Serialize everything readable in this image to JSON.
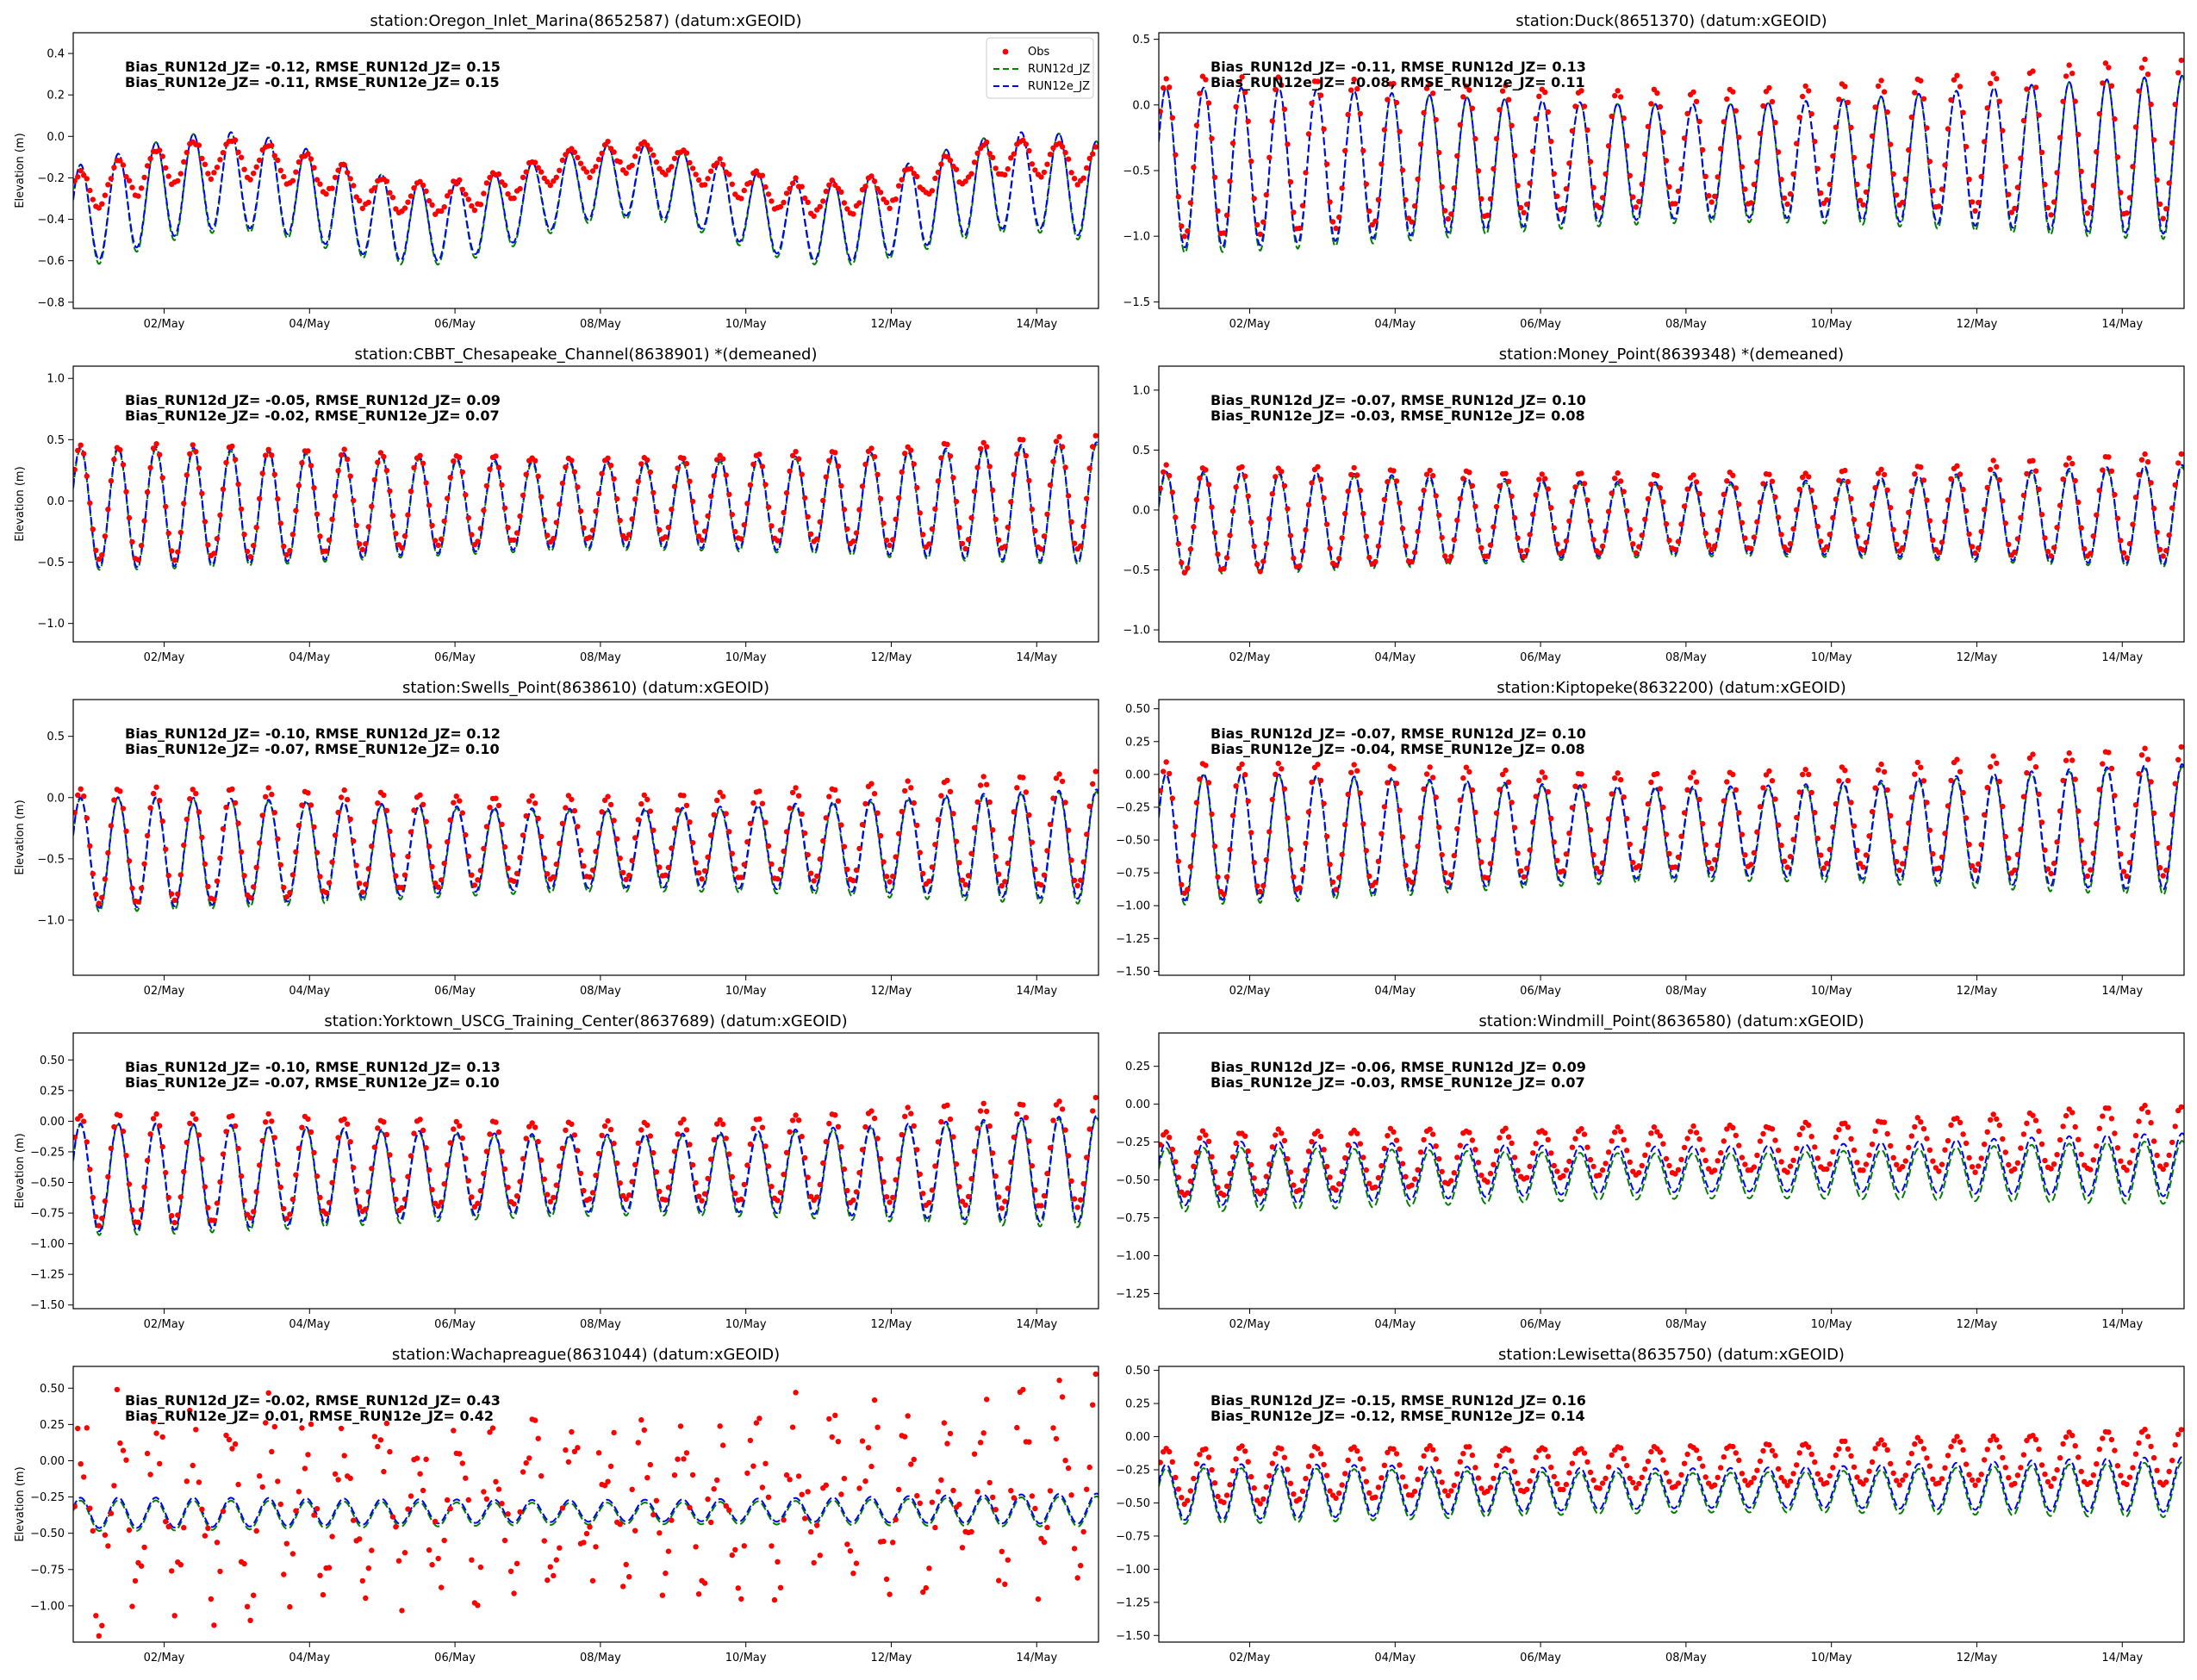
{
  "chart_data": [
    {
      "type": "line",
      "title": "station:Oregon_Inlet_Marina(8652587) (datum:xGEOID)",
      "ylabel": "Elevation (m)",
      "ylim": [
        -0.83,
        0.5
      ],
      "yticks": [
        -0.8,
        -0.6,
        -0.4,
        -0.2,
        0.0,
        0.2,
        0.4
      ],
      "ytick_labels": [
        "−0.8",
        "−0.6",
        "−0.4",
        "−0.2",
        "0.0",
        "0.2",
        "0.4"
      ],
      "xticks": [
        "02/May",
        "04/May",
        "06/May",
        "08/May",
        "10/May",
        "12/May",
        "14/May"
      ],
      "stats": [
        "Bias_RUN12d_JZ= -0.12, RMSE_RUN12d_JZ=  0.15",
        "Bias_RUN12e_JZ= -0.11, RMSE_RUN12e_JZ=  0.15"
      ],
      "legend": true,
      "series": [
        {
          "name": "Obs",
          "style": "dots",
          "color": "#ff0000",
          "mean": -0.2,
          "amp": 0.09,
          "trend": 0.0,
          "slosh": 0.1,
          "noise": 0.0
        },
        {
          "name": "RUN12d_JZ",
          "style": "dashed",
          "color": "#008000",
          "mean": -0.32,
          "amp": 0.24,
          "trend": 0.0,
          "slosh": 0.1
        },
        {
          "name": "RUN12e_JZ",
          "style": "dashed",
          "color": "#0000ff",
          "mean": -0.31,
          "amp": 0.23,
          "trend": 0.0,
          "slosh": 0.1
        }
      ]
    },
    {
      "type": "line",
      "title": "station:Duck(8651370) (datum:xGEOID)",
      "ylabel": "",
      "ylim": [
        -1.55,
        0.55
      ],
      "yticks": [
        -1.5,
        -1.0,
        -0.5,
        0.0,
        0.5
      ],
      "ytick_labels": [
        "−1.5",
        "−1.0",
        "−0.5",
        "0.0",
        "0.5"
      ],
      "xticks": [
        "02/May",
        "04/May",
        "06/May",
        "08/May",
        "10/May",
        "12/May",
        "14/May"
      ],
      "stats": [
        "Bias_RUN12d_JZ= -0.11, RMSE_RUN12d_JZ=  0.13",
        "Bias_RUN12e_JZ= -0.08, RMSE_RUN12e_JZ=  0.11"
      ],
      "legend": false,
      "series": [
        {
          "name": "Obs",
          "style": "dots",
          "color": "#ff0000",
          "mean": -0.4,
          "amp": 0.58,
          "trend": 0.15,
          "slosh": 0.0,
          "noise": 0.0
        },
        {
          "name": "RUN12d_JZ",
          "style": "dashed",
          "color": "#008000",
          "mean": -0.5,
          "amp": 0.6,
          "trend": 0.1,
          "slosh": 0.0
        },
        {
          "name": "RUN12e_JZ",
          "style": "dashed",
          "color": "#0000ff",
          "mean": -0.48,
          "amp": 0.58,
          "trend": 0.1,
          "slosh": 0.0
        }
      ]
    },
    {
      "type": "line",
      "title": "station:CBBT_Chesapeake_Channel(8638901) *(demeaned)",
      "ylabel": "Elevation (m)",
      "ylim": [
        -1.15,
        1.1
      ],
      "yticks": [
        -1.0,
        -0.5,
        0.0,
        0.5,
        1.0
      ],
      "ytick_labels": [
        "−1.0",
        "−0.5",
        "0.0",
        "0.5",
        "1.0"
      ],
      "xticks": [
        "02/May",
        "04/May",
        "06/May",
        "08/May",
        "10/May",
        "12/May",
        "14/May"
      ],
      "stats": [
        "Bias_RUN12d_JZ= -0.05, RMSE_RUN12d_JZ=  0.09",
        "Bias_RUN12e_JZ= -0.02, RMSE_RUN12e_JZ=  0.07"
      ],
      "legend": false,
      "series": [
        {
          "name": "Obs",
          "style": "dots",
          "color": "#ff0000",
          "mean": -0.02,
          "amp": 0.45,
          "trend": 0.08,
          "slosh": 0.0,
          "noise": 0.0
        },
        {
          "name": "RUN12d_JZ",
          "style": "dashed",
          "color": "#008000",
          "mean": -0.07,
          "amp": 0.47,
          "trend": 0.04,
          "slosh": 0.0
        },
        {
          "name": "RUN12e_JZ",
          "style": "dashed",
          "color": "#0000ff",
          "mean": -0.05,
          "amp": 0.47,
          "trend": 0.04,
          "slosh": 0.0
        }
      ]
    },
    {
      "type": "line",
      "title": "station:Money_Point(8639348) *(demeaned)",
      "ylabel": "",
      "ylim": [
        -1.1,
        1.2
      ],
      "yticks": [
        -1.0,
        -0.5,
        0.0,
        0.5,
        1.0
      ],
      "ytick_labels": [
        "−1.0",
        "−0.5",
        "0.0",
        "0.5",
        "1.0"
      ],
      "xticks": [
        "02/May",
        "04/May",
        "06/May",
        "08/May",
        "10/May",
        "12/May",
        "14/May"
      ],
      "stats": [
        "Bias_RUN12d_JZ= -0.07, RMSE_RUN12d_JZ=  0.10",
        "Bias_RUN12e_JZ= -0.03, RMSE_RUN12e_JZ=  0.08"
      ],
      "legend": false,
      "series": [
        {
          "name": "Obs",
          "style": "dots",
          "color": "#ff0000",
          "mean": -0.08,
          "amp": 0.42,
          "trend": 0.12,
          "slosh": 0.0,
          "noise": 0.0
        },
        {
          "name": "RUN12d_JZ",
          "style": "dashed",
          "color": "#008000",
          "mean": -0.12,
          "amp": 0.4,
          "trend": 0.06,
          "slosh": 0.0
        },
        {
          "name": "RUN12e_JZ",
          "style": "dashed",
          "color": "#0000ff",
          "mean": -0.1,
          "amp": 0.4,
          "trend": 0.06,
          "slosh": 0.0
        }
      ]
    },
    {
      "type": "line",
      "title": "station:Swells_Point(8638610) (datum:xGEOID)",
      "ylabel": "Elevation (m)",
      "ylim": [
        -1.45,
        0.8
      ],
      "yticks": [
        -1.0,
        -0.5,
        0.0,
        0.5
      ],
      "ytick_labels": [
        "−1.0",
        "−0.5",
        "0.0",
        "0.5"
      ],
      "xticks": [
        "02/May",
        "04/May",
        "06/May",
        "08/May",
        "10/May",
        "12/May",
        "14/May"
      ],
      "stats": [
        "Bias_RUN12d_JZ= -0.10, RMSE_RUN12d_JZ=  0.12",
        "Bias_RUN12e_JZ= -0.07, RMSE_RUN12e_JZ=  0.10"
      ],
      "legend": false,
      "series": [
        {
          "name": "Obs",
          "style": "dots",
          "color": "#ff0000",
          "mean": -0.4,
          "amp": 0.45,
          "trend": 0.14,
          "slosh": 0.0,
          "noise": 0.0
        },
        {
          "name": "RUN12d_JZ",
          "style": "dashed",
          "color": "#008000",
          "mean": -0.47,
          "amp": 0.44,
          "trend": 0.06,
          "slosh": 0.0
        },
        {
          "name": "RUN12e_JZ",
          "style": "dashed",
          "color": "#0000ff",
          "mean": -0.45,
          "amp": 0.43,
          "trend": 0.07,
          "slosh": 0.0
        }
      ]
    },
    {
      "type": "line",
      "title": "station:Kiptopeke(8632200) (datum:xGEOID)",
      "ylabel": "",
      "ylim": [
        -1.53,
        0.57
      ],
      "yticks": [
        -1.5,
        -1.25,
        -1.0,
        -0.75,
        -0.5,
        -0.25,
        0.0,
        0.25,
        0.5
      ],
      "ytick_labels": [
        "−1.50",
        "−1.25",
        "−1.00",
        "−0.75",
        "−0.50",
        "−0.25",
        "0.00",
        "0.25",
        "0.50"
      ],
      "xticks": [
        "02/May",
        "04/May",
        "06/May",
        "08/May",
        "10/May",
        "12/May",
        "14/May"
      ],
      "stats": [
        "Bias_RUN12d_JZ= -0.07, RMSE_RUN12d_JZ=  0.10",
        "Bias_RUN12e_JZ= -0.04, RMSE_RUN12e_JZ=  0.08"
      ],
      "legend": false,
      "series": [
        {
          "name": "Obs",
          "style": "dots",
          "color": "#ff0000",
          "mean": -0.42,
          "amp": 0.48,
          "trend": 0.14,
          "slosh": 0.0,
          "noise": 0.0
        },
        {
          "name": "RUN12d_JZ",
          "style": "dashed",
          "color": "#008000",
          "mean": -0.5,
          "amp": 0.47,
          "trend": 0.07,
          "slosh": 0.0
        },
        {
          "name": "RUN12e_JZ",
          "style": "dashed",
          "color": "#0000ff",
          "mean": -0.48,
          "amp": 0.46,
          "trend": 0.08,
          "slosh": 0.0
        }
      ]
    },
    {
      "type": "line",
      "title": "station:Yorktown_USCG_Training_Center(8637689) (datum:xGEOID)",
      "ylabel": "Elevation (m)",
      "ylim": [
        -1.53,
        0.72
      ],
      "yticks": [
        -1.5,
        -1.25,
        -1.0,
        -0.75,
        -0.5,
        -0.25,
        0.0,
        0.25,
        0.5
      ],
      "ytick_labels": [
        "−1.50",
        "−1.25",
        "−1.00",
        "−0.75",
        "−0.50",
        "−0.25",
        "0.00",
        "0.25",
        "0.50"
      ],
      "xticks": [
        "02/May",
        "04/May",
        "06/May",
        "08/May",
        "10/May",
        "12/May",
        "14/May"
      ],
      "stats": [
        "Bias_RUN12d_JZ= -0.10, RMSE_RUN12d_JZ=  0.13",
        "Bias_RUN12e_JZ= -0.07, RMSE_RUN12e_JZ=  0.10"
      ],
      "legend": false,
      "series": [
        {
          "name": "Obs",
          "style": "dots",
          "color": "#ff0000",
          "mean": -0.4,
          "amp": 0.43,
          "trend": 0.14,
          "slosh": 0.0,
          "noise": 0.0
        },
        {
          "name": "RUN12d_JZ",
          "style": "dashed",
          "color": "#008000",
          "mean": -0.48,
          "amp": 0.43,
          "trend": 0.06,
          "slosh": 0.0
        },
        {
          "name": "RUN12e_JZ",
          "style": "dashed",
          "color": "#0000ff",
          "mean": -0.46,
          "amp": 0.42,
          "trend": 0.07,
          "slosh": 0.0
        }
      ]
    },
    {
      "type": "line",
      "title": "station:Windmill_Point(8636580) (datum:xGEOID)",
      "ylabel": "",
      "ylim": [
        -1.35,
        0.47
      ],
      "yticks": [
        -1.25,
        -1.0,
        -0.75,
        -0.5,
        -0.25,
        0.0,
        0.25
      ],
      "ytick_labels": [
        "−1.25",
        "−1.00",
        "−0.75",
        "−0.50",
        "−0.25",
        "0.00",
        "0.25"
      ],
      "xticks": [
        "02/May",
        "04/May",
        "06/May",
        "08/May",
        "10/May",
        "12/May",
        "14/May"
      ],
      "stats": [
        "Bias_RUN12d_JZ= -0.06, RMSE_RUN12d_JZ=  0.09",
        "Bias_RUN12e_JZ= -0.03, RMSE_RUN12e_JZ=  0.07"
      ],
      "legend": false,
      "series": [
        {
          "name": "Obs",
          "style": "dots",
          "color": "#ff0000",
          "mean": -0.4,
          "amp": 0.2,
          "trend": 0.18,
          "slosh": 0.0,
          "noise": 0.0
        },
        {
          "name": "RUN12d_JZ",
          "style": "dashed",
          "color": "#008000",
          "mean": -0.5,
          "amp": 0.2,
          "trend": 0.05,
          "slosh": 0.0
        },
        {
          "name": "RUN12e_JZ",
          "style": "dashed",
          "color": "#0000ff",
          "mean": -0.46,
          "amp": 0.2,
          "trend": 0.06,
          "slosh": 0.0
        }
      ]
    },
    {
      "type": "line",
      "title": "station:Wachapreague(8631044) (datum:xGEOID)",
      "ylabel": "Elevation (m)",
      "ylim": [
        -1.25,
        0.65
      ],
      "yticks": [
        -1.0,
        -0.75,
        -0.5,
        -0.25,
        0.0,
        0.25,
        0.5
      ],
      "ytick_labels": [
        "−1.00",
        "−0.75",
        "−0.50",
        "−0.25",
        "0.00",
        "0.25",
        "0.50"
      ],
      "xticks": [
        "02/May",
        "04/May",
        "06/May",
        "08/May",
        "10/May",
        "12/May",
        "14/May"
      ],
      "stats": [
        "Bias_RUN12d_JZ= -0.02, RMSE_RUN12d_JZ=  0.43",
        "Bias_RUN12e_JZ=  0.01, RMSE_RUN12e_JZ=  0.42"
      ],
      "legend": false,
      "series": [
        {
          "name": "Obs",
          "style": "dots",
          "color": "#ff0000",
          "mean": -0.35,
          "amp": 0.55,
          "trend": 0.15,
          "slosh": 0.0,
          "noise": 0.3
        },
        {
          "name": "RUN12d_JZ",
          "style": "dashed",
          "color": "#008000",
          "mean": -0.38,
          "amp": 0.1,
          "trend": 0.03,
          "slosh": 0.0
        },
        {
          "name": "RUN12e_JZ",
          "style": "dashed",
          "color": "#0000ff",
          "mean": -0.36,
          "amp": 0.1,
          "trend": 0.03,
          "slosh": 0.0
        }
      ]
    },
    {
      "type": "line",
      "title": "station:Lewisetta(8635750) (datum:xGEOID)",
      "ylabel": "",
      "ylim": [
        -1.55,
        0.53
      ],
      "yticks": [
        -1.5,
        -1.25,
        -1.0,
        -0.75,
        -0.5,
        -0.25,
        0.0,
        0.25,
        0.5
      ],
      "ytick_labels": [
        "−1.50",
        "−1.25",
        "−1.00",
        "−0.75",
        "−0.50",
        "−0.25",
        "0.00",
        "0.25",
        "0.50"
      ],
      "xticks": [
        "02/May",
        "04/May",
        "06/May",
        "08/May",
        "10/May",
        "12/May",
        "14/May"
      ],
      "stats": [
        "Bias_RUN12d_JZ= -0.15, RMSE_RUN12d_JZ=  0.16",
        "Bias_RUN12e_JZ= -0.12, RMSE_RUN12e_JZ=  0.14"
      ],
      "legend": false,
      "series": [
        {
          "name": "Obs",
          "style": "dots",
          "color": "#ff0000",
          "mean": -0.3,
          "amp": 0.2,
          "trend": 0.15,
          "slosh": 0.0,
          "noise": 0.0
        },
        {
          "name": "RUN12d_JZ",
          "style": "dashed",
          "color": "#008000",
          "mean": -0.45,
          "amp": 0.2,
          "trend": 0.05,
          "slosh": 0.0
        },
        {
          "name": "RUN12e_JZ",
          "style": "dashed",
          "color": "#0000ff",
          "mean": -0.42,
          "amp": 0.2,
          "trend": 0.06,
          "slosh": 0.0
        }
      ]
    }
  ]
}
